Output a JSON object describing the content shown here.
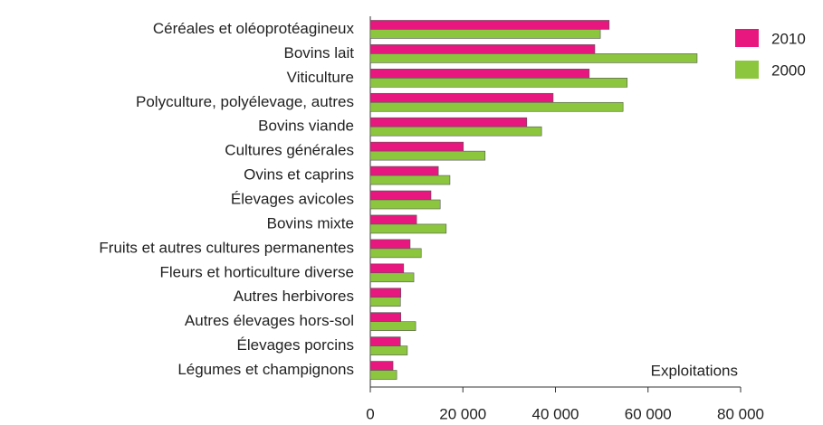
{
  "chart_data": {
    "type": "barh",
    "annotation": "Exploitations",
    "categories": [
      "Céréales et oléoprotéagineux",
      "Bovins lait",
      "Viticulture",
      "Polyculture, polyélevage, autres",
      "Bovins viande",
      "Cultures générales",
      "Ovins et caprins",
      "Élevages avicoles",
      "Bovins mixte",
      "Fruits et autres cultures permanentes",
      "Fleurs et horticulture diverse",
      "Autres herbivores",
      "Autres élevages hors-sol",
      "Élevages porcins",
      "Légumes et champignons"
    ],
    "series": [
      {
        "name": "2010",
        "color": "#e8177f",
        "values": [
          51600,
          48500,
          47300,
          39500,
          33800,
          20100,
          14700,
          13100,
          10000,
          8600,
          7200,
          6600,
          6600,
          6500,
          4900
        ]
      },
      {
        "name": "2000",
        "color": "#8cc63f",
        "values": [
          49700,
          70600,
          55500,
          54600,
          37000,
          24800,
          17200,
          15100,
          16400,
          11000,
          9400,
          6500,
          9800,
          8000,
          5700
        ]
      }
    ],
    "xlim": [
      0,
      80000
    ],
    "xticks": [
      0,
      {
        "value": 20000,
        "label": "20 000"
      },
      {
        "value": 40000,
        "label": "40 000"
      },
      {
        "value": 60000,
        "label": "60 000"
      },
      {
        "value": 80000,
        "label": "80 000"
      }
    ],
    "legend": "top-right"
  }
}
